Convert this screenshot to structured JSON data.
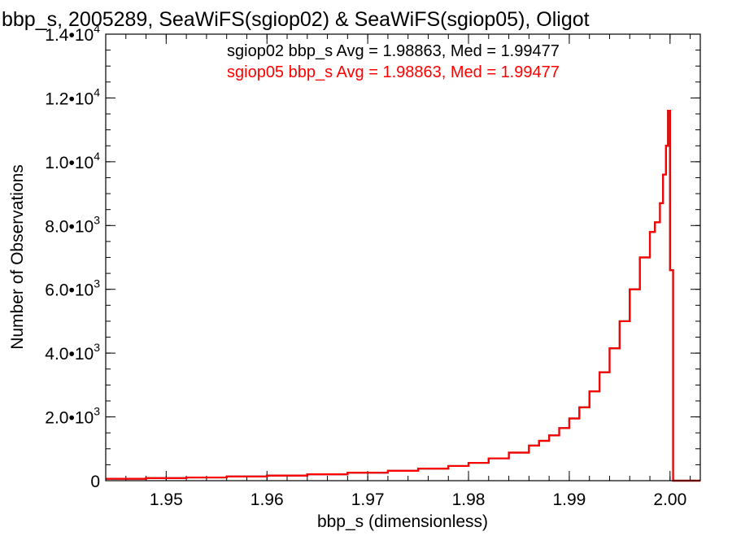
{
  "chart_data": {
    "type": "histogram",
    "title": "bbp_s, 2005289, SeaWiFS(sgiop02) & SeaWiFS(sgiop05), Oligot",
    "xlabel": "bbp_s (dimensionless)",
    "ylabel": "Number of Observations",
    "xlim": [
      1.944,
      2.003
    ],
    "ylim": [
      0,
      14000
    ],
    "x_ticks": [
      1.95,
      1.96,
      1.97,
      1.98,
      1.99,
      2.0
    ],
    "x_tick_labels": [
      "1.95",
      "1.96",
      "1.97",
      "1.98",
      "1.99",
      "2.00"
    ],
    "y_ticks": [
      {
        "value": 0,
        "mantissa": "0",
        "exp": ""
      },
      {
        "value": 2000,
        "mantissa": "2.0•10",
        "exp": "3"
      },
      {
        "value": 4000,
        "mantissa": "4.0•10",
        "exp": "3"
      },
      {
        "value": 6000,
        "mantissa": "6.0•10",
        "exp": "3"
      },
      {
        "value": 8000,
        "mantissa": "8.0•10",
        "exp": "3"
      },
      {
        "value": 10000,
        "mantissa": "1.0•10",
        "exp": "4"
      },
      {
        "value": 12000,
        "mantissa": "1.2•10",
        "exp": "4"
      },
      {
        "value": 14000,
        "mantissa": "1.4•10",
        "exp": "4"
      }
    ],
    "annotations": [
      {
        "text": "sgiop02 bbp_s Avg = 1.98863, Med = 1.99477",
        "color": "#000000"
      },
      {
        "text": "sgiop05 bbp_s Avg = 1.98863, Med = 1.99477",
        "color": "#ff0000"
      }
    ],
    "series": [
      {
        "color": "#ff0000",
        "step": true,
        "x": [
          1.944,
          1.948,
          1.952,
          1.956,
          1.96,
          1.964,
          1.968,
          1.972,
          1.975,
          1.978,
          1.98,
          1.982,
          1.984,
          1.986,
          1.987,
          1.988,
          1.989,
          1.99,
          1.991,
          1.992,
          1.993,
          1.994,
          1.995,
          1.996,
          1.997,
          1.998,
          1.9985,
          1.999,
          1.9993,
          1.9996,
          1.9998,
          2.0,
          2.0003,
          2.0006,
          2.003
        ],
        "y": [
          60,
          80,
          100,
          130,
          160,
          200,
          250,
          310,
          380,
          460,
          560,
          700,
          880,
          1100,
          1250,
          1420,
          1650,
          1950,
          2300,
          2800,
          3400,
          4150,
          5000,
          6000,
          7000,
          7800,
          8100,
          8700,
          9600,
          10500,
          11600,
          6600,
          0,
          0,
          0
        ]
      },
      {
        "color": "#000000",
        "step": true,
        "hidden_behind": "sgiop05",
        "x": [
          1.944,
          1.948,
          1.952,
          1.956,
          1.96,
          1.964,
          1.968,
          1.972,
          1.975,
          1.978,
          1.98,
          1.982,
          1.984,
          1.986,
          1.987,
          1.988,
          1.989,
          1.99,
          1.991,
          1.992,
          1.993,
          1.994,
          1.995,
          1.996,
          1.997,
          1.998,
          1.9985,
          1.999,
          1.9993,
          1.9996,
          1.9998,
          2.0,
          2.0003,
          2.0006,
          2.003
        ],
        "y": [
          60,
          80,
          100,
          130,
          160,
          200,
          250,
          310,
          380,
          460,
          560,
          700,
          880,
          1100,
          1250,
          1420,
          1650,
          1950,
          2300,
          2800,
          3400,
          4150,
          5000,
          6000,
          7000,
          7800,
          8100,
          8700,
          9600,
          10500,
          11600,
          6600,
          0,
          0,
          0
        ]
      }
    ]
  }
}
